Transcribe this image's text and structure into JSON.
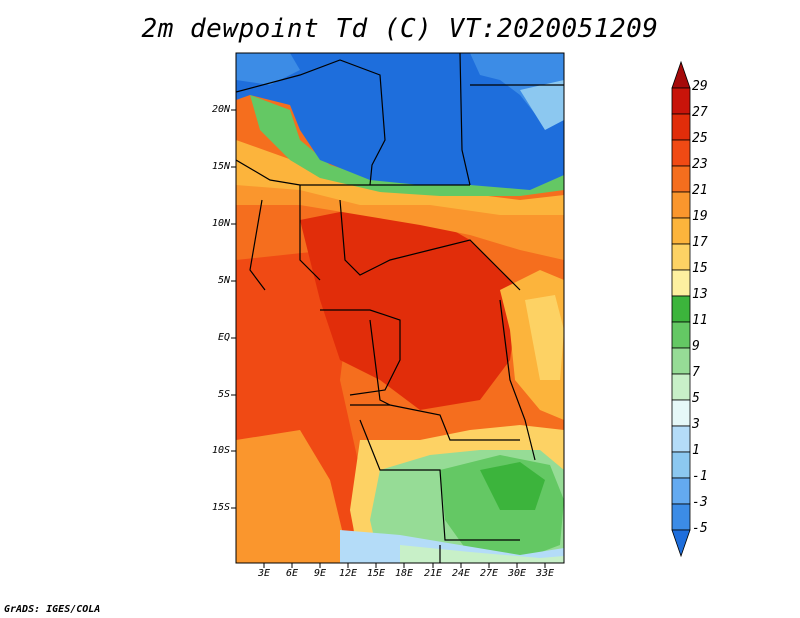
{
  "title": "2m dewpoint Td (C) VT:2020051209",
  "footer": "GrADS: IGES/COLA",
  "axes": {
    "lat_labels": [
      "20N",
      "15N",
      "10N",
      "5N",
      "EQ",
      "5S",
      "10S",
      "15S"
    ],
    "lon_labels": [
      "3E",
      "6E",
      "9E",
      "12E",
      "15E",
      "18E",
      "21E",
      "24E",
      "27E",
      "30E",
      "33E"
    ]
  },
  "colorbar": {
    "labels": [
      "29",
      "27",
      "25",
      "23",
      "21",
      "19",
      "17",
      "15",
      "13",
      "11",
      "9",
      "7",
      "5",
      "3",
      "1",
      "-1",
      "-3",
      "-5"
    ],
    "colors": [
      "#a50a0a",
      "#c8140a",
      "#e12d0a",
      "#f04a14",
      "#f56e1e",
      "#fa962d",
      "#fcb43c",
      "#fdd264",
      "#fdf0a0",
      "#3cb43c",
      "#64c864",
      "#96dc96",
      "#c8f0c8",
      "#e6f8f8",
      "#b4dcf8",
      "#8cc8f0",
      "#64aaf0",
      "#3c8ce6",
      "#1e6edc"
    ]
  },
  "map": {
    "region": "Central Africa",
    "lat_range": [
      -20,
      25
    ],
    "lon_range": [
      0,
      35
    ]
  }
}
